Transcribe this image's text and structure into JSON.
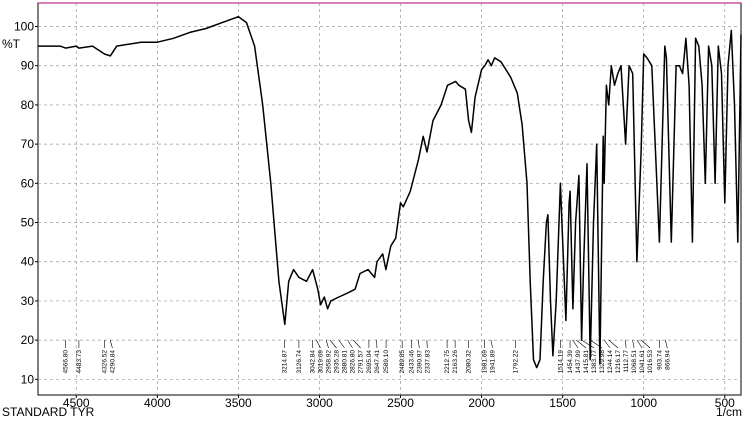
{
  "chart_data": {
    "type": "line",
    "y_label": "%T",
    "x_label": "1/cm",
    "footer": "STANDARD TYR",
    "color": "#000000",
    "xlim": [
      4736,
      400
    ],
    "ylim": [
      6,
      106
    ],
    "xticks": [
      4500,
      4000,
      3500,
      3000,
      2500,
      2000,
      1500,
      1000,
      500
    ],
    "yticks": [
      10,
      20,
      30,
      40,
      50,
      60,
      70,
      80,
      90,
      100
    ],
    "grid": true,
    "x": [
      4736,
      4600,
      4566,
      4500,
      4483,
      4400,
      4326,
      4290,
      4250,
      4100,
      4000,
      3900,
      3800,
      3700,
      3600,
      3500,
      3450,
      3400,
      3350,
      3300,
      3250,
      3214,
      3190,
      3160,
      3126,
      3080,
      3042,
      3010,
      2993,
      2970,
      2950,
      2930,
      2880,
      2827,
      2780,
      2750,
      2700,
      2660,
      2645,
      2610,
      2590,
      2560,
      2530,
      2500,
      2483,
      2440,
      2390,
      2360,
      2337,
      2300,
      2250,
      2210,
      2160,
      2140,
      2100,
      2080,
      2063,
      2040,
      2000,
      1980,
      1960,
      1940,
      1920,
      1880,
      1850,
      1820,
      1780,
      1750,
      1720,
      1700,
      1680,
      1660,
      1640,
      1620,
      1600,
      1591,
      1575,
      1560,
      1540,
      1514,
      1500,
      1480,
      1460,
      1454,
      1437,
      1420,
      1400,
      1383,
      1370,
      1350,
      1330,
      1310,
      1290,
      1270,
      1250,
      1244,
      1230,
      1216,
      1200,
      1180,
      1160,
      1140,
      1112,
      1090,
      1068,
      1042,
      1016,
      1000,
      980,
      950,
      903,
      870,
      860,
      830,
      800,
      780,
      760,
      740,
      720,
      700,
      680,
      660,
      640,
      620,
      600,
      580,
      560,
      540,
      520,
      500,
      480,
      460,
      440,
      420,
      400
    ],
    "values": [
      95,
      95,
      94.5,
      95,
      94.5,
      95,
      93,
      92.5,
      95,
      96,
      96,
      97,
      98.5,
      99.5,
      101,
      102.5,
      101,
      95,
      80,
      60,
      35,
      24,
      35,
      38,
      36,
      35,
      38,
      33,
      29,
      31,
      28,
      30,
      31,
      32,
      33,
      37,
      38,
      36,
      40,
      42,
      38,
      44,
      46,
      55,
      54,
      58,
      66,
      72,
      68,
      76,
      80,
      85,
      86,
      85,
      84,
      76,
      73,
      82,
      89,
      90,
      91.5,
      90,
      92,
      91,
      89,
      87,
      83,
      75,
      60,
      35,
      15,
      13,
      15,
      35,
      50,
      52,
      30,
      16,
      30,
      60,
      45,
      25,
      55,
      58,
      28,
      50,
      62,
      20,
      40,
      65,
      15,
      50,
      70,
      14,
      72,
      60,
      85,
      80,
      90,
      85,
      88,
      90,
      70,
      90,
      88,
      40,
      68,
      93,
      92,
      90,
      45,
      95,
      92,
      45,
      90,
      90,
      88,
      97,
      85,
      45,
      97,
      95,
      85,
      60,
      95,
      90,
      60,
      95,
      88,
      55,
      90,
      99,
      80,
      45,
      98
    ],
    "peaks": [
      {
        "x": 4566.8,
        "label": "4566.80"
      },
      {
        "x": 4483.73,
        "label": "4483.73"
      },
      {
        "x": 4326.52,
        "label": "4326.52"
      },
      {
        "x": 4290.84,
        "label": "4290.84"
      },
      {
        "x": 3214.87,
        "label": "3214.87"
      },
      {
        "x": 3126.74,
        "label": "3126.74"
      },
      {
        "x": 3042.84,
        "label": "3042.84"
      },
      {
        "x": 3019.69,
        "label": "3019.69"
      },
      {
        "x": 2958.92,
        "label": "2958.92"
      },
      {
        "x": 2935.28,
        "label": "2935.28"
      },
      {
        "x": 2880.81,
        "label": "2880.81"
      },
      {
        "x": 2826.8,
        "label": "2826.80"
      },
      {
        "x": 2791.57,
        "label": "2791.57"
      },
      {
        "x": 2695.04,
        "label": "2695.04"
      },
      {
        "x": 2647.41,
        "label": "2647.41"
      },
      {
        "x": 2589.1,
        "label": "2589.10"
      },
      {
        "x": 2489.85,
        "label": "2489.85"
      },
      {
        "x": 2433.46,
        "label": "2433.46"
      },
      {
        "x": 2390.97,
        "label": "2390.97"
      },
      {
        "x": 2337.83,
        "label": "2337.83"
      },
      {
        "x": 2212.75,
        "label": "2212.75"
      },
      {
        "x": 2163.26,
        "label": "2163.26"
      },
      {
        "x": 2080.32,
        "label": "2080.32"
      },
      {
        "x": 1981.69,
        "label": "1981.69"
      },
      {
        "x": 1941.89,
        "label": "1941.89"
      },
      {
        "x": 1792.22,
        "label": "1792.22"
      },
      {
        "x": 1514.19,
        "label": "1514.19"
      },
      {
        "x": 1454.39,
        "label": "1454.39"
      },
      {
        "x": 1437.99,
        "label": "1437.99"
      },
      {
        "x": 1415.81,
        "label": "1415.81"
      },
      {
        "x": 1383.77,
        "label": "1383.77"
      },
      {
        "x": 1329.98,
        "label": "1329.98"
      },
      {
        "x": 1244.14,
        "label": "1244.14"
      },
      {
        "x": 1216.17,
        "label": "1216.17"
      },
      {
        "x": 1112.77,
        "label": "1112.77"
      },
      {
        "x": 1068.51,
        "label": "1068.51"
      },
      {
        "x": 1041.61,
        "label": "1041.61"
      },
      {
        "x": 1016.53,
        "label": "1016.53"
      },
      {
        "x": 903.74,
        "label": "903.74"
      },
      {
        "x": 866.94,
        "label": "866.94"
      }
    ]
  }
}
